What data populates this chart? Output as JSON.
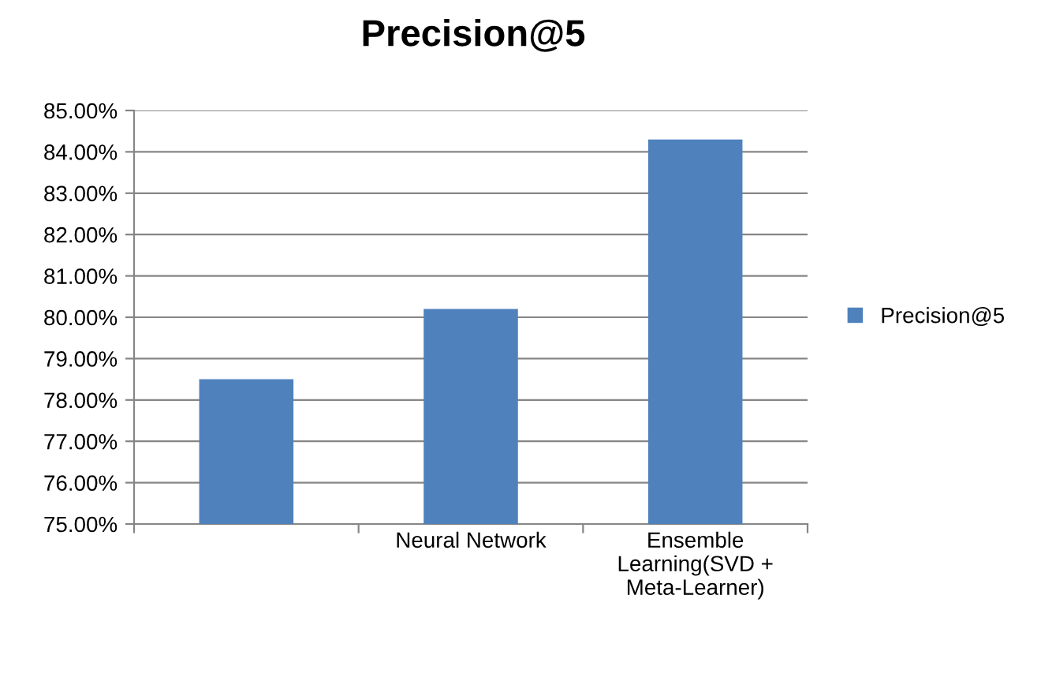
{
  "chart_data": {
    "type": "bar",
    "title": "Precision@5",
    "categories": [
      null,
      "Neural Network",
      "Ensemble Learning(SVD + Meta-Learner)"
    ],
    "series": [
      {
        "name": "Precision@5",
        "color": "#4f81bd",
        "values": [
          78.5,
          80.2,
          84.3
        ]
      }
    ],
    "ylim": [
      75,
      85
    ],
    "yticks": [
      {
        "value": 75,
        "label": "75.00%"
      },
      {
        "value": 76,
        "label": "76.00%"
      },
      {
        "value": 77,
        "label": "77.00%"
      },
      {
        "value": 78,
        "label": "78.00%"
      },
      {
        "value": 79,
        "label": "79.00%"
      },
      {
        "value": 80,
        "label": "80.00%"
      },
      {
        "value": 81,
        "label": "81.00%"
      },
      {
        "value": 82,
        "label": "82.00%"
      },
      {
        "value": 83,
        "label": "83.00%"
      },
      {
        "value": 84,
        "label": "84.00%"
      },
      {
        "value": 85,
        "label": "85.00%"
      }
    ],
    "grid": "y",
    "legend": "right"
  }
}
